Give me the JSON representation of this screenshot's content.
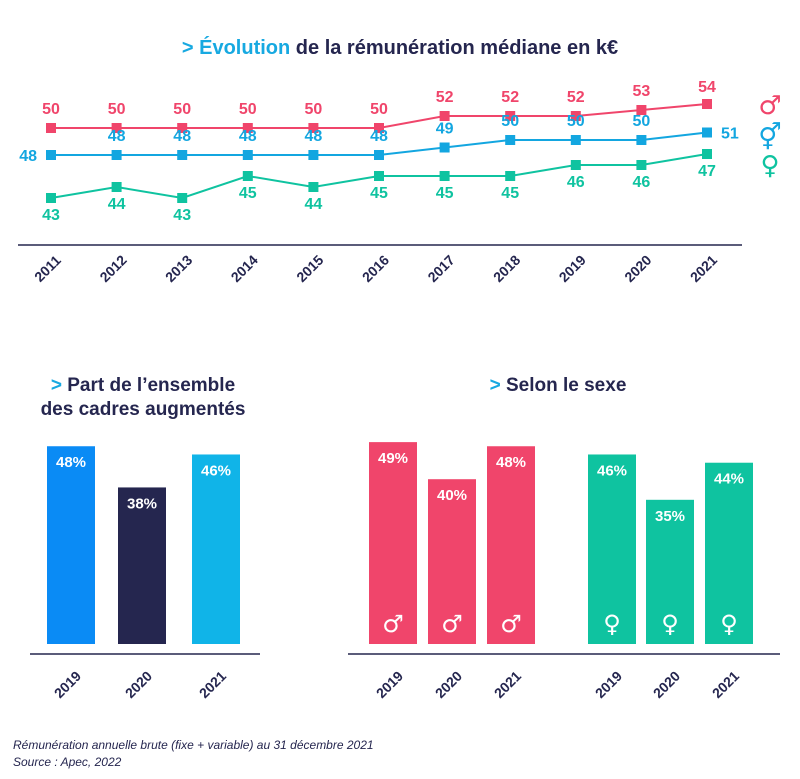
{
  "titles": {
    "main_prefix": "> ",
    "main_highlight": "Évolution",
    "main_rest": " de la rémunération médiane en k€",
    "left_prefix": "> ",
    "left_line1": "Part de l’ensemble",
    "left_line2": "des cadres augmentés",
    "right_prefix": "> ",
    "right": "Selon le sexe"
  },
  "footnotes": {
    "line1": "Rémunération annuelle brute (fixe + variable) au 31 décembre 2021",
    "line2": "Source : Apec, 2022"
  },
  "legend": {
    "male_symbol": "♂",
    "all_symbol": "⚥",
    "female_symbol": "♀"
  },
  "colors": {
    "male": "#f0456b",
    "all": "#13a6e0",
    "female": "#0fc3a0",
    "navy": "#25264f",
    "bar2019": "#0a8bf5",
    "bar2020": "#25264f",
    "bar2021": "#10b4e8"
  },
  "chart_data": [
    {
      "type": "line",
      "title": "Évolution de la rémunération médiane en k€",
      "x": [
        "2011",
        "2012",
        "2013",
        "2014",
        "2015",
        "2016",
        "2017",
        "2018",
        "2019",
        "2020",
        "2021"
      ],
      "ylim": [
        40,
        56
      ],
      "series": [
        {
          "key": "male",
          "symbol": "♂",
          "values": [
            50,
            50,
            50,
            50,
            50,
            50,
            52,
            52,
            52,
            53,
            54
          ]
        },
        {
          "key": "all",
          "symbol": "⚥",
          "values": [
            48,
            48,
            48,
            48,
            48,
            48,
            49,
            50,
            50,
            50,
            51
          ]
        },
        {
          "key": "female",
          "symbol": "♀",
          "values": [
            43,
            44,
            43,
            45,
            44,
            45,
            45,
            45,
            46,
            46,
            47
          ]
        }
      ]
    },
    {
      "type": "bar",
      "title": "Part de l’ensemble des cadres augmentés",
      "categories": [
        "2019",
        "2020",
        "2021"
      ],
      "values": [
        48,
        38,
        46
      ],
      "labels": [
        "48%",
        "38%",
        "46%"
      ],
      "ylim": [
        0,
        50
      ]
    },
    {
      "type": "bar",
      "title": "Selon le sexe",
      "groups": [
        {
          "key": "male",
          "symbol": "♂",
          "categories": [
            "2019",
            "2020",
            "2021"
          ],
          "values": [
            49,
            40,
            48
          ],
          "labels": [
            "49%",
            "40%",
            "48%"
          ]
        },
        {
          "key": "female",
          "symbol": "♀",
          "categories": [
            "2019",
            "2020",
            "2021"
          ],
          "values": [
            46,
            35,
            44
          ],
          "labels": [
            "46%",
            "35%",
            "44%"
          ]
        }
      ],
      "ylim": [
        0,
        50
      ]
    }
  ]
}
